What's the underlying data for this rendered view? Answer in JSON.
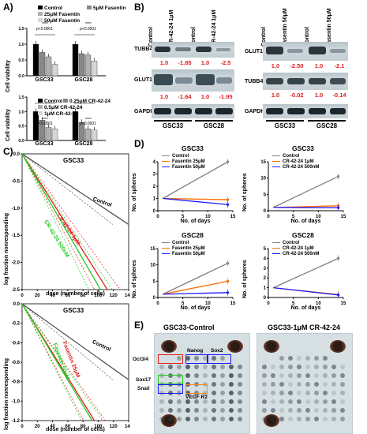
{
  "panels": {
    "A": "A)",
    "B": "B)",
    "C": "C)",
    "D": "D)",
    "E": "E)"
  },
  "panelA": {
    "chart_top": {
      "legend": [
        "Control",
        "5μM Fasentin",
        "25μM Fasentin",
        "50μM Fasentin"
      ],
      "ylabel": "Cell viability",
      "pvalues": [
        "p<0.0001",
        "p<0.0001"
      ],
      "stars": [
        "****",
        "****"
      ],
      "yticks": [
        "0.0",
        "0.5",
        "1.0",
        "1.5"
      ],
      "categories": [
        "GSC33",
        "GSC28"
      ]
    },
    "chart_bottom": {
      "legend": [
        "Control",
        "0.25μM CR-42-24",
        "0.5μM CR-42-24",
        "1μM CR-42-24"
      ],
      "ylabel": "Cell viability",
      "pvalues": [
        "p<0.0001",
        "p<0.0001"
      ],
      "stars": [
        "****",
        "****"
      ],
      "yticks": [
        "0.0",
        "0.5",
        "1.0",
        "1.5"
      ],
      "categories": [
        "GSC33",
        "GSC28"
      ]
    }
  },
  "chart_data": [
    {
      "type": "bar",
      "categories": [
        "GSC33",
        "GSC28"
      ],
      "ylabel": "Cell viability",
      "ylim": [
        0,
        1.5
      ],
      "series": [
        {
          "name": "Control",
          "values": [
            1.0,
            1.0
          ]
        },
        {
          "name": "5μM Fasentin",
          "values": [
            0.74,
            0.7
          ]
        },
        {
          "name": "25μM Fasentin",
          "values": [
            0.6,
            0.66
          ]
        },
        {
          "name": "50μM Fasentin",
          "values": [
            0.36,
            0.47
          ]
        }
      ]
    },
    {
      "type": "bar",
      "categories": [
        "GSC33",
        "GSC28"
      ],
      "ylabel": "Cell viability",
      "ylim": [
        0,
        1.5
      ],
      "series": [
        {
          "name": "Control",
          "values": [
            1.0,
            1.0
          ]
        },
        {
          "name": "0.25μM CR-42-24",
          "values": [
            0.7,
            0.62
          ]
        },
        {
          "name": "0.5μM CR-42-24",
          "values": [
            0.45,
            0.4
          ]
        },
        {
          "name": "1μM CR-42-24",
          "values": [
            0.4,
            0.36
          ]
        }
      ]
    },
    {
      "type": "line",
      "title": "GSC33",
      "xlabel": "dose (number of cells)",
      "ylabel": "log fraction nonresponding",
      "xlim": [
        0,
        140
      ],
      "ylim": [
        -2.5,
        0
      ],
      "x_ticks": [
        0,
        20,
        40,
        60,
        80,
        100,
        120,
        140
      ],
      "y_ticks": [
        0.0,
        -0.5,
        -1.0,
        -1.5,
        -2.0,
        -2.5
      ],
      "series": [
        {
          "name": "Control",
          "x": [
            0,
            140
          ],
          "y": [
            0,
            -1.3
          ]
        },
        {
          "name": "CR-42-24 1μM",
          "x": [
            0,
            112
          ],
          "y": [
            0,
            -2.5
          ]
        },
        {
          "name": "CR-42-24 500nM",
          "x": [
            0,
            103
          ],
          "y": [
            0,
            -2.5
          ]
        }
      ]
    },
    {
      "type": "line",
      "title": "GSC33",
      "xlabel": "dose (number of cells)",
      "ylabel": "log fraction nonresponding",
      "xlim": [
        0,
        140
      ],
      "ylim": [
        -1.2,
        0
      ],
      "x_ticks": [
        0,
        20,
        40,
        60,
        80,
        100,
        120,
        140
      ],
      "y_ticks": [
        0.0,
        -0.2,
        -0.4,
        -0.6,
        -0.8,
        -1.0,
        -1.2
      ],
      "series": [
        {
          "name": "Control",
          "x": [
            0,
            140
          ],
          "y": [
            0,
            -0.78
          ]
        },
        {
          "name": "Fasentin 25μM",
          "x": [
            0,
            95
          ],
          "y": [
            0,
            -1.2
          ]
        },
        {
          "name": "Fasentin 50μM",
          "x": [
            0,
            92
          ],
          "y": [
            0,
            -1.2
          ]
        }
      ]
    },
    {
      "type": "line",
      "title": "GSC33",
      "xlabel": "No. of days",
      "ylabel": "No. of spheres",
      "x": [
        1,
        14
      ],
      "ylim": [
        0,
        4
      ],
      "series": [
        {
          "name": "Control",
          "values": [
            1,
            4
          ]
        },
        {
          "name": "Fasentin 25μM",
          "values": [
            1,
            0.9
          ]
        },
        {
          "name": "Fasentin 50μM",
          "values": [
            1,
            0.5
          ]
        }
      ]
    },
    {
      "type": "line",
      "title": "GSC33",
      "xlabel": "No. of days",
      "ylabel": "No. of spheres",
      "x": [
        1,
        14
      ],
      "ylim": [
        0,
        12
      ],
      "series": [
        {
          "name": "Control",
          "values": [
            1,
            10.5
          ]
        },
        {
          "name": "CR-42-24 1μM",
          "values": [
            1,
            1.5
          ]
        },
        {
          "name": "CR-42-24 500nM",
          "values": [
            1,
            0.9
          ]
        }
      ]
    },
    {
      "type": "line",
      "title": "GSC28",
      "xlabel": "No. of days",
      "ylabel": "No. of spheres",
      "x": [
        1,
        14
      ],
      "ylim": [
        0,
        15
      ],
      "series": [
        {
          "name": "Control",
          "values": [
            1,
            10.5
          ]
        },
        {
          "name": "Fasentin 25μM",
          "values": [
            1,
            5
          ]
        },
        {
          "name": "Fasentin 50μM",
          "values": [
            1,
            1.5
          ]
        }
      ]
    },
    {
      "type": "line",
      "title": "GSC28",
      "xlabel": "No. of days",
      "ylabel": "No. of spheres",
      "x": [
        1,
        14
      ],
      "ylim": [
        0,
        5
      ],
      "series": [
        {
          "name": "Control",
          "values": [
            1,
            4
          ]
        },
        {
          "name": "CR-42-24 1μM",
          "values": [
            1,
            0.3
          ]
        },
        {
          "name": "CR-42-24 500nM",
          "values": [
            1,
            0.25
          ]
        }
      ]
    }
  ],
  "panelB": {
    "left": {
      "lanes": [
        "Control",
        "CR-42-24 1μM",
        "Control",
        "CR-42-24 1μM"
      ],
      "proteins": [
        "TUBB4",
        "GLUT1",
        "GAPDH"
      ],
      "tubb4_vals": [
        "1.0",
        "-1.85",
        "1.0",
        "-2.5"
      ],
      "glut1_vals": [
        "1.0",
        "-1.64",
        "1.0",
        "-1.95"
      ],
      "groups": [
        "GSC33",
        "GSC28"
      ]
    },
    "right": {
      "lanes": [
        "Control",
        "Fasentin 50μM",
        "Control",
        "Fasentin 50μM"
      ],
      "proteins": [
        "GLUT1",
        "TUBB4",
        "GAPDH"
      ],
      "glut1_vals": [
        "1.0",
        "-2.50",
        "1.0",
        "-2.1"
      ],
      "tubb4_vals": [
        "1.0",
        "-0.02",
        "1.0",
        "-0.14"
      ],
      "groups": [
        "GSC33",
        "GSC28"
      ]
    }
  },
  "panelC": {
    "top": {
      "title": "GSC33",
      "ylabel": "log fraction nonresponding",
      "xlabel": "dose (number of cells)",
      "yticks": [
        "0.0",
        "-0.5",
        "-1.0",
        "-1.5",
        "-2.0",
        "-2.5"
      ],
      "xticks": [
        "0",
        "20",
        "40",
        "60",
        "80",
        "100",
        "120",
        "140"
      ],
      "series_labels": [
        "Control",
        "CR-42-24 1μM",
        "CR-42-24 500nM"
      ]
    },
    "bottom": {
      "title": "GSC33",
      "ylabel": "log fraction nonresponding",
      "xlabel": "dose (number of cells)",
      "yticks": [
        "0.0",
        "-0.2",
        "-0.4",
        "-0.6",
        "-0.8",
        "-1.0",
        "-1.2"
      ],
      "xticks": [
        "0",
        "20",
        "40",
        "60",
        "80",
        "100",
        "120",
        "140"
      ],
      "series_labels": [
        "Control",
        "Fasentin 25μM",
        "Fasentin 50μM"
      ]
    }
  },
  "panelD": {
    "charts": [
      {
        "title": "GSC33",
        "legend": [
          "Control",
          "Fasentin 25μM",
          "Fasentin 50μM"
        ],
        "yticks": [
          "0",
          "1",
          "2",
          "3",
          "4"
        ],
        "xticks": [
          "0",
          "5",
          "10",
          "15"
        ],
        "ylabel": "No. of spheres",
        "xlabel": "No. of days"
      },
      {
        "title": "GSC33",
        "legend": [
          "Control",
          "CR-42-24 1μM",
          "CR-42-24 500nM"
        ],
        "yticks": [
          "0",
          "5",
          "10",
          "15"
        ],
        "xticks": [
          "0",
          "5",
          "10",
          "15"
        ],
        "ylabel": "No. of spheres",
        "xlabel": "No. of days"
      },
      {
        "title": "GSC28",
        "legend": [
          "Control",
          "Fasentin 25μM",
          "Fasentin 50μM"
        ],
        "yticks": [
          "0",
          "5",
          "10",
          "15"
        ],
        "xticks": [
          "0",
          "5",
          "10",
          "15"
        ],
        "ylabel": "No. of spheres",
        "xlabel": "No. of days"
      },
      {
        "title": "GSC28",
        "legend": [
          "Control",
          "CR-42-24 1μM",
          "CR-42-24 500nM"
        ],
        "yticks": [
          "0",
          "1",
          "2",
          "3",
          "4",
          "5"
        ],
        "xticks": [
          "0",
          "5",
          "10",
          "15"
        ],
        "ylabel": "No. of spheres",
        "xlabel": "No. of days"
      }
    ]
  },
  "panelE": {
    "titles": [
      "GSC33-Control",
      "GSC33-1μM CR-42-24"
    ],
    "spot_labels": [
      "Oct3/4",
      "Nanog",
      "Sox2",
      "Sox17",
      "Snail",
      "VEGF R2"
    ]
  },
  "colors": {
    "control": "#808080",
    "treat1": "#ff6a00",
    "treat2": "#1a1aff",
    "red": "#e02020",
    "green": "#22cc22"
  }
}
